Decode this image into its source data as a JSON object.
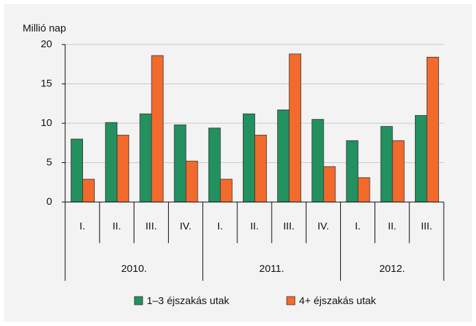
{
  "chart_data": {
    "type": "bar",
    "y_axis_label": "Millió nap",
    "category_groups": [
      {
        "name": "2010.",
        "categories": [
          "I.",
          "II.",
          "III.",
          "IV."
        ]
      },
      {
        "name": "2011.",
        "categories": [
          "I.",
          "II.",
          "III.",
          "IV."
        ]
      },
      {
        "name": "2012.",
        "categories": [
          "I.",
          "II.",
          "III."
        ]
      }
    ],
    "series": [
      {
        "name": "1–3 éjszakás utak",
        "color": "#23905f",
        "values": [
          8.0,
          10.1,
          11.2,
          9.8,
          9.4,
          11.2,
          11.7,
          10.5,
          7.8,
          9.6,
          11.0
        ]
      },
      {
        "name": "4+ éjszakás utak",
        "color": "#f26a2c",
        "values": [
          2.9,
          8.5,
          18.6,
          5.2,
          2.9,
          8.5,
          18.8,
          4.5,
          3.1,
          7.8,
          18.4
        ]
      }
    ],
    "ylim": [
      0,
      20
    ],
    "yticks": [
      0,
      5,
      10,
      15,
      20
    ],
    "grid": true
  }
}
